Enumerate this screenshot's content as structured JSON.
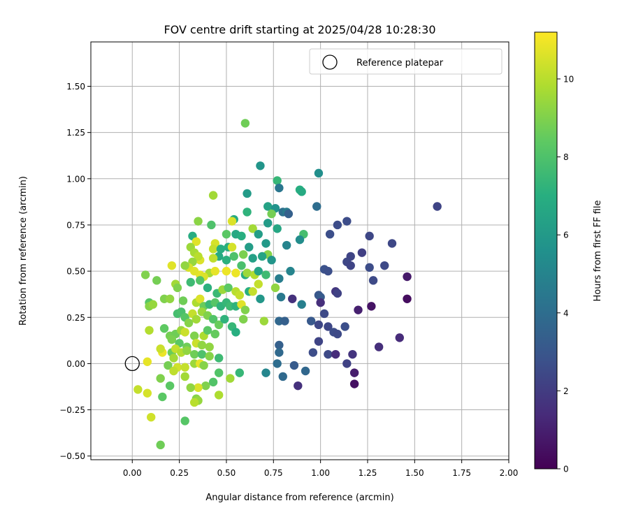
{
  "chart_data": {
    "type": "scatter",
    "title": "FOV centre drift starting at 2025/04/28 10:28:30",
    "xlabel": "Angular distance from reference (arcmin)",
    "ylabel": "Rotation from reference (arcmin)",
    "xlim": [
      -0.22,
      2.0
    ],
    "ylim": [
      -0.52,
      1.74
    ],
    "xticks": [
      "0.00",
      "0.25",
      "0.50",
      "0.75",
      "1.00",
      "1.25",
      "1.50",
      "1.75",
      "2.00"
    ],
    "yticks": [
      "−0.50",
      "−0.25",
      "0.00",
      "0.25",
      "0.50",
      "0.75",
      "1.00",
      "1.25",
      "1.50"
    ],
    "grid": true,
    "legend": {
      "placement": "top-right",
      "entries": [
        "Reference platepar"
      ]
    },
    "colorbar": {
      "label": "Hours from first FF file",
      "min": 0,
      "max": 11.2,
      "ticks": [
        "0",
        "2",
        "4",
        "6",
        "8",
        "10"
      ],
      "colormap": "viridis"
    },
    "reference_point": {
      "x": 0.0,
      "y": 0.0,
      "label": "Reference platepar"
    },
    "points": [
      [
        0.6,
        1.3,
        8.7
      ],
      [
        0.68,
        1.07,
        5.8
      ],
      [
        0.99,
        1.03,
        5.5
      ],
      [
        0.77,
        0.99,
        7.4
      ],
      [
        0.78,
        0.95,
        4.4
      ],
      [
        0.89,
        0.94,
        7.0
      ],
      [
        0.9,
        0.93,
        6.8
      ],
      [
        0.61,
        0.92,
        6.1
      ],
      [
        0.43,
        0.91,
        9.6
      ],
      [
        0.72,
        0.85,
        6.4
      ],
      [
        0.76,
        0.84,
        5.7
      ],
      [
        0.8,
        0.82,
        4.1
      ],
      [
        0.82,
        0.82,
        4.6
      ],
      [
        0.83,
        0.81,
        3.4
      ],
      [
        0.98,
        0.85,
        4.0
      ],
      [
        1.62,
        0.85,
        2.3
      ],
      [
        0.74,
        0.81,
        8.8
      ],
      [
        0.61,
        0.82,
        7.2
      ],
      [
        0.54,
        0.78,
        6.8
      ],
      [
        0.53,
        0.77,
        10.6
      ],
      [
        0.35,
        0.77,
        9.2
      ],
      [
        0.42,
        0.75,
        8.0
      ],
      [
        0.72,
        0.76,
        6.1
      ],
      [
        0.77,
        0.73,
        6.6
      ],
      [
        1.14,
        0.77,
        2.6
      ],
      [
        1.09,
        0.75,
        2.6
      ],
      [
        0.91,
        0.7,
        7.8
      ],
      [
        1.05,
        0.7,
        2.7
      ],
      [
        1.26,
        0.69,
        2.4
      ],
      [
        0.64,
        0.73,
        9.6
      ],
      [
        0.67,
        0.7,
        6.2
      ],
      [
        0.32,
        0.69,
        6.9
      ],
      [
        0.5,
        0.7,
        8.3
      ],
      [
        0.55,
        0.7,
        6.7
      ],
      [
        0.58,
        0.69,
        7.0
      ],
      [
        0.89,
        0.67,
        5.4
      ],
      [
        0.82,
        0.64,
        5.0
      ],
      [
        0.71,
        0.65,
        6.0
      ],
      [
        0.62,
        0.63,
        6.2
      ],
      [
        0.51,
        0.63,
        7.0
      ],
      [
        0.44,
        0.65,
        10.5
      ],
      [
        0.43,
        0.62,
        10.2
      ],
      [
        0.34,
        0.66,
        10.7
      ],
      [
        0.31,
        0.63,
        9.5
      ],
      [
        0.33,
        0.6,
        9.7
      ],
      [
        0.47,
        0.62,
        7.0
      ],
      [
        0.53,
        0.63,
        10.5
      ],
      [
        1.38,
        0.65,
        2.4
      ],
      [
        1.22,
        0.6,
        2.1
      ],
      [
        1.16,
        0.58,
        2.3
      ],
      [
        1.14,
        0.55,
        2.4
      ],
      [
        1.16,
        0.53,
        2.3
      ],
      [
        1.26,
        0.52,
        2.6
      ],
      [
        1.34,
        0.53,
        2.5
      ],
      [
        1.02,
        0.51,
        2.8
      ],
      [
        1.04,
        0.5,
        2.7
      ],
      [
        0.72,
        0.59,
        9.1
      ],
      [
        0.64,
        0.57,
        6.3
      ],
      [
        0.69,
        0.58,
        6.5
      ],
      [
        0.74,
        0.56,
        5.8
      ],
      [
        0.59,
        0.59,
        8.9
      ],
      [
        0.54,
        0.58,
        8.0
      ],
      [
        0.5,
        0.56,
        7.1
      ],
      [
        0.46,
        0.58,
        6.8
      ],
      [
        0.43,
        0.57,
        10.1
      ],
      [
        0.36,
        0.56,
        10.6
      ],
      [
        0.35,
        0.58,
        10.0
      ],
      [
        0.32,
        0.55,
        9.4
      ],
      [
        0.3,
        0.52,
        10.5
      ],
      [
        0.28,
        0.53,
        9.3
      ],
      [
        0.21,
        0.53,
        10.7
      ],
      [
        0.07,
        0.48,
        9.0
      ],
      [
        0.41,
        0.49,
        9.7
      ],
      [
        0.36,
        0.48,
        10.8
      ],
      [
        0.33,
        0.5,
        10.7
      ],
      [
        0.38,
        0.47,
        10.6
      ],
      [
        0.44,
        0.5,
        10.8
      ],
      [
        0.5,
        0.5,
        10.9
      ],
      [
        0.55,
        0.49,
        10.9
      ],
      [
        0.58,
        0.53,
        7.9
      ],
      [
        0.6,
        0.48,
        6.9
      ],
      [
        0.61,
        0.49,
        9.5
      ],
      [
        0.65,
        0.48,
        9.9
      ],
      [
        0.67,
        0.5,
        6.5
      ],
      [
        0.71,
        0.48,
        7.6
      ],
      [
        0.78,
        0.46,
        4.7
      ],
      [
        0.84,
        0.5,
        5.0
      ],
      [
        1.28,
        0.45,
        2.5
      ],
      [
        1.46,
        0.47,
        0.8
      ],
      [
        0.13,
        0.45,
        8.8
      ],
      [
        0.23,
        0.43,
        9.6
      ],
      [
        0.24,
        0.41,
        9.0
      ],
      [
        0.31,
        0.44,
        7.6
      ],
      [
        0.36,
        0.45,
        8.1
      ],
      [
        0.4,
        0.41,
        7.1
      ],
      [
        0.45,
        0.38,
        7.5
      ],
      [
        0.48,
        0.4,
        9.5
      ],
      [
        0.51,
        0.41,
        8.3
      ],
      [
        0.55,
        0.39,
        10.0
      ],
      [
        0.57,
        0.37,
        10.2
      ],
      [
        0.62,
        0.39,
        7.0
      ],
      [
        0.64,
        0.39,
        10.2
      ],
      [
        0.67,
        0.43,
        10.2
      ],
      [
        0.68,
        0.35,
        5.9
      ],
      [
        0.76,
        0.41,
        9.3
      ],
      [
        0.79,
        0.36,
        4.5
      ],
      [
        0.85,
        0.35,
        1.6
      ],
      [
        0.9,
        0.32,
        4.8
      ],
      [
        0.99,
        0.37,
        3.0
      ],
      [
        1.0,
        0.36,
        3.2
      ],
      [
        1.0,
        0.33,
        1.5
      ],
      [
        1.08,
        0.39,
        1.8
      ],
      [
        1.09,
        0.38,
        2.2
      ],
      [
        1.46,
        0.35,
        0.4
      ],
      [
        0.09,
        0.33,
        8.2
      ],
      [
        0.09,
        0.31,
        9.1
      ],
      [
        0.11,
        0.32,
        9.4
      ],
      [
        0.17,
        0.35,
        9.0
      ],
      [
        0.2,
        0.35,
        9.3
      ],
      [
        0.27,
        0.34,
        8.7
      ],
      [
        0.34,
        0.33,
        9.8
      ],
      [
        0.36,
        0.35,
        10.6
      ],
      [
        0.38,
        0.31,
        8.6
      ],
      [
        0.41,
        0.32,
        7.5
      ],
      [
        0.44,
        0.33,
        8.2
      ],
      [
        0.47,
        0.31,
        7.2
      ],
      [
        0.5,
        0.33,
        7.4
      ],
      [
        0.52,
        0.31,
        7.6
      ],
      [
        0.55,
        0.31,
        7.2
      ],
      [
        0.58,
        0.32,
        10.7
      ],
      [
        0.6,
        0.29,
        9.0
      ],
      [
        1.02,
        0.27,
        2.5
      ],
      [
        1.2,
        0.29,
        1.0
      ],
      [
        1.27,
        0.31,
        0.6
      ],
      [
        0.24,
        0.27,
        7.8
      ],
      [
        0.26,
        0.28,
        7.9
      ],
      [
        0.28,
        0.25,
        8.2
      ],
      [
        0.3,
        0.22,
        9.1
      ],
      [
        0.32,
        0.27,
        10.2
      ],
      [
        0.34,
        0.24,
        9.6
      ],
      [
        0.37,
        0.28,
        9.5
      ],
      [
        0.4,
        0.26,
        9.0
      ],
      [
        0.43,
        0.24,
        8.1
      ],
      [
        0.46,
        0.21,
        8.6
      ],
      [
        0.49,
        0.24,
        7.2
      ],
      [
        0.53,
        0.2,
        7.4
      ],
      [
        0.55,
        0.17,
        7.0
      ],
      [
        0.59,
        0.24,
        9.0
      ],
      [
        0.7,
        0.23,
        9.5
      ],
      [
        0.78,
        0.23,
        3.7
      ],
      [
        0.81,
        0.23,
        3.4
      ],
      [
        0.95,
        0.23,
        3.1
      ],
      [
        0.99,
        0.21,
        2.4
      ],
      [
        1.04,
        0.2,
        2.4
      ],
      [
        1.13,
        0.2,
        2.7
      ],
      [
        1.07,
        0.17,
        2.6
      ],
      [
        1.09,
        0.16,
        2.5
      ],
      [
        1.42,
        0.14,
        1.4
      ],
      [
        0.09,
        0.18,
        9.9
      ],
      [
        0.17,
        0.19,
        8.4
      ],
      [
        0.2,
        0.15,
        8.8
      ],
      [
        0.23,
        0.16,
        8.7
      ],
      [
        0.26,
        0.18,
        9.5
      ],
      [
        0.28,
        0.17,
        10.3
      ],
      [
        0.33,
        0.15,
        9.0
      ],
      [
        0.38,
        0.15,
        9.8
      ],
      [
        0.4,
        0.18,
        8.3
      ],
      [
        0.44,
        0.16,
        8.5
      ],
      [
        0.21,
        0.13,
        8.9
      ],
      [
        0.25,
        0.11,
        8.3
      ],
      [
        0.29,
        0.09,
        8.7
      ],
      [
        0.34,
        0.11,
        10.3
      ],
      [
        0.37,
        0.1,
        9.3
      ],
      [
        0.41,
        0.09,
        9.3
      ],
      [
        0.21,
        0.06,
        8.6
      ],
      [
        0.22,
        0.03,
        9.6
      ],
      [
        0.16,
        0.06,
        10.9
      ],
      [
        0.15,
        0.08,
        10.3
      ],
      [
        0.23,
        0.08,
        10.2
      ],
      [
        0.26,
        0.06,
        9.9
      ],
      [
        0.29,
        0.07,
        9.3
      ],
      [
        0.33,
        0.05,
        8.7
      ],
      [
        0.37,
        0.05,
        8.0
      ],
      [
        0.41,
        0.04,
        9.1
      ],
      [
        0.46,
        0.03,
        7.6
      ],
      [
        0.78,
        0.1,
        3.4
      ],
      [
        0.78,
        0.06,
        3.8
      ],
      [
        0.96,
        0.06,
        2.6
      ],
      [
        0.99,
        0.12,
        2.3
      ],
      [
        1.04,
        0.05,
        2.5
      ],
      [
        1.08,
        0.05,
        1.4
      ],
      [
        1.17,
        0.05,
        1.7
      ],
      [
        1.31,
        0.09,
        1.5
      ],
      [
        0.08,
        0.01,
        10.8
      ],
      [
        0.19,
        -0.01,
        8.8
      ],
      [
        0.24,
        -0.02,
        10.4
      ],
      [
        0.28,
        -0.02,
        10.2
      ],
      [
        0.33,
        0.0,
        9.5
      ],
      [
        0.36,
        0.0,
        10.8
      ],
      [
        0.38,
        -0.01,
        9.1
      ],
      [
        0.77,
        0.0,
        4.0
      ],
      [
        0.86,
        -0.01,
        3.2
      ],
      [
        0.92,
        -0.04,
        3.7
      ],
      [
        1.14,
        0.0,
        2.2
      ],
      [
        1.18,
        -0.05,
        0.9
      ],
      [
        1.18,
        -0.11,
        0.5
      ],
      [
        0.88,
        -0.12,
        1.6
      ],
      [
        0.8,
        -0.07,
        3.8
      ],
      [
        0.71,
        -0.05,
        5.1
      ],
      [
        0.57,
        -0.05,
        7.4
      ],
      [
        0.46,
        -0.05,
        8.1
      ],
      [
        0.52,
        -0.08,
        9.6
      ],
      [
        0.43,
        -0.1,
        8.1
      ],
      [
        0.39,
        -0.12,
        9.0
      ],
      [
        0.35,
        -0.13,
        10.6
      ],
      [
        0.31,
        -0.13,
        9.3
      ],
      [
        0.28,
        -0.07,
        9.6
      ],
      [
        0.22,
        -0.04,
        10.1
      ],
      [
        0.15,
        -0.08,
        9.0
      ],
      [
        0.2,
        -0.12,
        8.3
      ],
      [
        0.16,
        -0.18,
        8.3
      ],
      [
        0.03,
        -0.14,
        10.2
      ],
      [
        0.08,
        -0.16,
        10.5
      ],
      [
        0.34,
        -0.19,
        9.1
      ],
      [
        0.35,
        -0.2,
        9.4
      ],
      [
        0.46,
        -0.17,
        9.8
      ],
      [
        0.33,
        -0.21,
        10.0
      ],
      [
        0.28,
        -0.31,
        8.2
      ],
      [
        0.1,
        -0.29,
        10.4
      ],
      [
        0.15,
        -0.44,
        8.7
      ]
    ]
  }
}
